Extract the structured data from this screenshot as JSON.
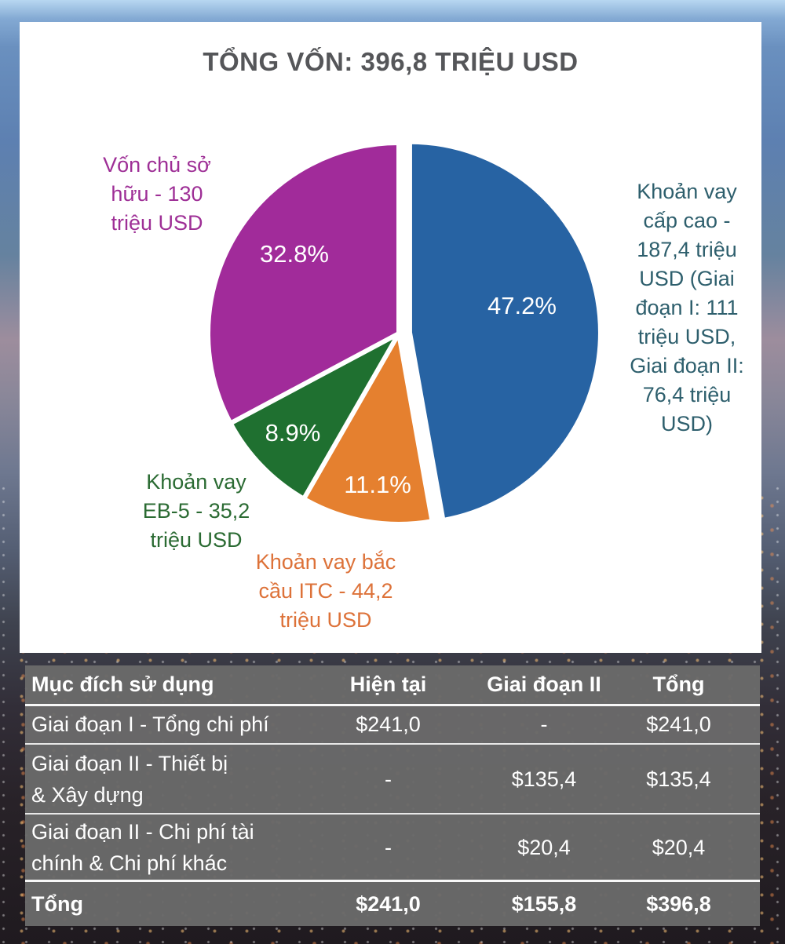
{
  "chart_data": [
    {
      "type": "pie",
      "title": "TỔNG VỐN: 396,8 TRIỆU USD",
      "legend_position": "outside-callouts",
      "total_trieu_usd": 396.8,
      "slices": [
        {
          "name": "senior-loan",
          "label": "Khoản vay cấp cao - 187,4 triệu USD (Giai đoạn I: 111 triệu USD, Giai đoạn II: 76,4 triệu USD)",
          "display_label": "Khoản vay\ncấp cao -\n187,4 triệu\nUSD (Giai\nđoạn I: 111\ntriệu USD,\nGiai đoạn II:\n76,4 triệu\nUSD)",
          "percent": 47.2,
          "percent_label": "47.2%",
          "value_trieu_usd": 187.4,
          "color": "#2763a3",
          "text_color": "#2e5f6d",
          "exploded": true
        },
        {
          "name": "itc-bridge-loan",
          "label": "Khoản vay bắc cầu ITC - 44,2 triệu USD",
          "display_label": "Khoản vay bắc\ncầu ITC - 44,2\ntriệu USD",
          "percent": 11.1,
          "percent_label": "11.1%",
          "value_trieu_usd": 44.2,
          "color": "#e5802f",
          "text_color": "#dd7239",
          "exploded": false
        },
        {
          "name": "eb5-loan",
          "label": "Khoản vay EB-5 - 35,2 triệu USD",
          "display_label": "Khoản vay\nEB-5 - 35,2\ntriệu USD",
          "percent": 8.9,
          "percent_label": "8.9%",
          "value_trieu_usd": 35.2,
          "color": "#1f7030",
          "text_color": "#2b6b33",
          "exploded": false
        },
        {
          "name": "equity",
          "label": "Vốn chủ sở hữu - 130 triệu USD",
          "display_label": "Vốn chủ sở\nhữu - 130\ntriệu USD",
          "percent": 32.8,
          "percent_label": "32.8%",
          "value_trieu_usd": 130,
          "color": "#a12b9a",
          "text_color": "#9e2f96",
          "exploded": false
        }
      ]
    },
    {
      "type": "table",
      "columns": [
        "Mục đích sử dụng",
        "Hiện tại",
        "Giai đoạn II",
        "Tổng"
      ],
      "rows": [
        [
          "Giai đoạn I - Tổng chi phí",
          "$241,0",
          "-",
          "$241,0"
        ],
        [
          "Giai đoạn II - Thiết bị\n& Xây dựng",
          "-",
          "$135,4",
          "$135,4"
        ],
        [
          "Giai đoạn II - Chi phí tài\nchính & Chi phí khác",
          "-",
          "$20,4",
          "$20,4"
        ]
      ],
      "total_row": [
        "Tổng",
        "$241,0",
        "$155,8",
        "$396,8"
      ]
    }
  ]
}
